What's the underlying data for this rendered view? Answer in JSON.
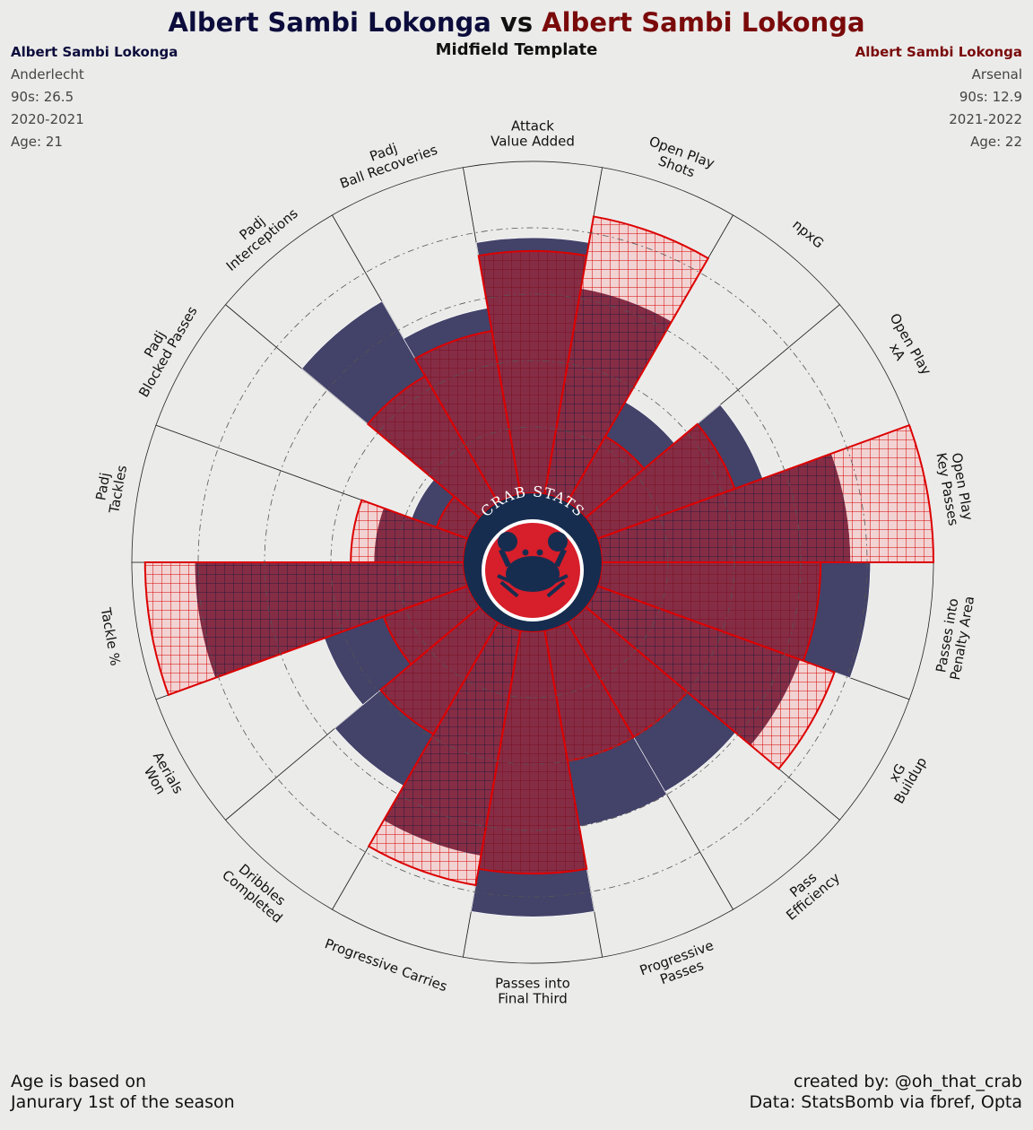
{
  "title": {
    "player_a": "Albert Sambi Lokonga",
    "vs": " vs ",
    "player_b": "Albert Sambi Lokonga",
    "color_a": "#0c0c3c",
    "color_b": "#7a0a0a"
  },
  "subtitle": "Midfield Template",
  "left_info": {
    "name": "Albert Sambi Lokonga",
    "team": "Anderlecht",
    "nineties": "90s: 26.5",
    "season": "2020-2021",
    "age": "Age: 21"
  },
  "right_info": {
    "name": "Albert Sambi Lokonga",
    "team": "Arsenal",
    "nineties": "90s: 12.9",
    "season": "2021-2022",
    "age": "Age: 22"
  },
  "logo_text": "CRAB STATS",
  "footer_left": [
    "Age is based on",
    "Janurary 1st of the season"
  ],
  "footer_right": [
    "created by: @oh_that_crab",
    "Data: StatsBomb via fbref, Opta"
  ],
  "chart_data": {
    "type": "radar-pizza",
    "ylim": [
      0,
      100
    ],
    "grid": true,
    "categories": [
      "Attack\nValue Added",
      "Open Play\nShots",
      "npxG",
      "Open Play\nxA",
      "Open Play\nKey Passes",
      "Passes into\nPenalty Area",
      "xG\nBuildup",
      "Pass\nEfficiency",
      "Progressive\nPasses",
      "Passes into\nFinal Third",
      "Progressive Carries",
      "Dribbles\nCompleted",
      "Aerials\nWon",
      "Tackle %",
      "Padj\nTackles",
      "Padj\nBlocked Passes",
      "Padj\nInterceptions",
      "Padj\nBall Recoveries"
    ],
    "series": [
      {
        "name": "Albert Sambi Lokonga",
        "color": "#434269",
        "values": [
          77,
          63,
          35,
          53,
          75,
          81,
          65,
          59,
          60,
          86,
          69,
          57,
          46,
          81,
          27,
          18,
          70,
          57
        ]
      },
      {
        "name": "Albert Sambi Lokonga",
        "color": "#d9141c",
        "values": [
          73,
          85,
          23,
          44,
          100,
          66,
          76,
          40,
          40,
          73,
          78,
          39,
          27,
          96,
          34,
          10,
          44,
          50
        ]
      }
    ],
    "colors": {
      "base_series": "#434269",
      "overlay_series": "#d9141c",
      "overlay_light": "#f2d3d3",
      "outline": "#dd0000",
      "background": "#ebebea",
      "logo_navy": "#172d4f",
      "logo_red": "#d71e2b"
    }
  }
}
